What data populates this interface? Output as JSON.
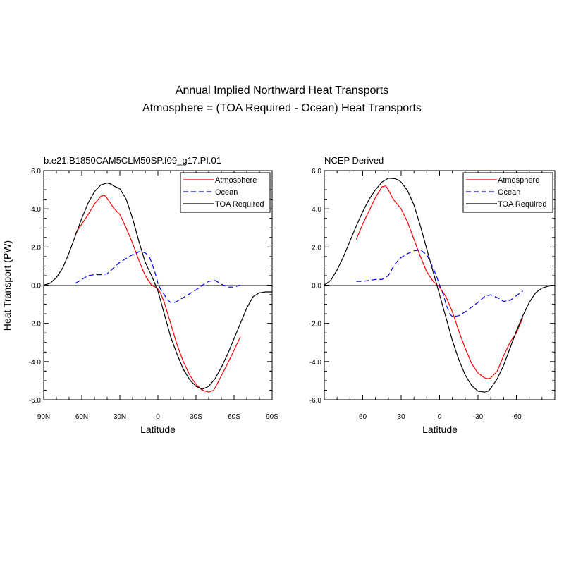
{
  "figure": {
    "title_line1": "Annual Implied Northward Heat Transports",
    "title_line2": "Atmosphere = (TOA Required - Ocean) Heat Transports"
  },
  "chart_data": [
    {
      "type": "line",
      "title": "b.e21.B1850CAM5CLM50SP.f09_g17.PI.01",
      "xlabel": "Latitude",
      "ylabel": "Heat Transport (PW)",
      "x_direction": "north-to-south",
      "xlim": [
        90,
        -90
      ],
      "ylim": [
        -6.0,
        6.0
      ],
      "xticks": [
        {
          "value": 90,
          "label": "90N"
        },
        {
          "value": 60,
          "label": "60N"
        },
        {
          "value": 30,
          "label": "30N"
        },
        {
          "value": 0,
          "label": "0"
        },
        {
          "value": -30,
          "label": "30S"
        },
        {
          "value": -60,
          "label": "60S"
        },
        {
          "value": -90,
          "label": "90S"
        }
      ],
      "yticks": [
        {
          "value": 6,
          "label": "6.0"
        },
        {
          "value": 4,
          "label": "4.0"
        },
        {
          "value": 2,
          "label": "2.0"
        },
        {
          "value": 0,
          "label": "0.0"
        },
        {
          "value": -2,
          "label": "-2.0"
        },
        {
          "value": -4,
          "label": "-4.0"
        },
        {
          "value": -6,
          "label": "-6.0"
        }
      ],
      "zero_line": true,
      "legend_position": "top-right",
      "series": [
        {
          "name": "Atmosphere",
          "color": "#ff0000",
          "dash": "solid",
          "x": [
            65,
            60,
            55,
            50,
            45,
            42,
            40,
            35,
            30,
            25,
            20,
            15,
            10,
            5,
            2,
            0,
            -2,
            -5,
            -10,
            -15,
            -20,
            -25,
            -30,
            -35,
            -40,
            -44,
            -48,
            -55,
            -65
          ],
          "y": [
            2.7,
            3.2,
            3.7,
            4.25,
            4.65,
            4.7,
            4.55,
            4.05,
            3.7,
            3.0,
            2.2,
            1.3,
            0.5,
            0.0,
            -0.1,
            -0.2,
            -0.4,
            -0.9,
            -2.0,
            -3.1,
            -4.0,
            -4.7,
            -5.2,
            -5.5,
            -5.6,
            -5.5,
            -5.0,
            -4.1,
            -2.7
          ]
        },
        {
          "name": "Ocean",
          "color": "#0000ff",
          "dash": "dashed",
          "x": [
            65,
            60,
            55,
            50,
            45,
            40,
            35,
            30,
            25,
            20,
            15,
            10,
            7,
            5,
            2,
            0,
            -2,
            -5,
            -8,
            -10,
            -13,
            -15,
            -20,
            -25,
            -30,
            -35,
            -40,
            -45,
            -50,
            -55,
            -60,
            -65
          ],
          "y": [
            0.1,
            0.3,
            0.5,
            0.55,
            0.55,
            0.6,
            0.9,
            1.2,
            1.4,
            1.6,
            1.75,
            1.7,
            1.5,
            1.2,
            0.6,
            0.1,
            -0.2,
            -0.5,
            -0.8,
            -0.9,
            -0.9,
            -0.85,
            -0.65,
            -0.45,
            -0.25,
            0.0,
            0.2,
            0.25,
            0.05,
            -0.1,
            -0.1,
            0.0
          ]
        },
        {
          "name": "TOA Required",
          "color": "#000000",
          "dash": "solid",
          "x": [
            90,
            85,
            80,
            75,
            70,
            65,
            60,
            55,
            50,
            45,
            40,
            37,
            35,
            30,
            25,
            20,
            15,
            10,
            5,
            0,
            -5,
            -10,
            -15,
            -20,
            -25,
            -30,
            -35,
            -40,
            -45,
            -50,
            -55,
            -60,
            -65,
            -70,
            -75,
            -80,
            -85,
            -90
          ],
          "y": [
            0.0,
            0.1,
            0.4,
            0.9,
            1.7,
            2.6,
            3.5,
            4.3,
            4.9,
            5.25,
            5.35,
            5.3,
            5.2,
            5.05,
            4.5,
            3.5,
            2.3,
            1.2,
            0.5,
            -0.3,
            -1.5,
            -2.7,
            -3.6,
            -4.4,
            -4.95,
            -5.3,
            -5.45,
            -5.3,
            -4.9,
            -4.3,
            -3.6,
            -2.8,
            -2.0,
            -1.2,
            -0.6,
            -0.4,
            -0.35,
            -0.35
          ]
        }
      ]
    },
    {
      "type": "line",
      "title": "NCEP Derived",
      "xlabel": "Latitude",
      "ylabel": "",
      "x_direction": "north-to-south",
      "xlim": [
        90,
        -90
      ],
      "ylim": [
        -6.0,
        6.0
      ],
      "xticks": [
        {
          "value": 60,
          "label": "60"
        },
        {
          "value": 30,
          "label": "30"
        },
        {
          "value": 0,
          "label": "0"
        },
        {
          "value": -30,
          "label": "-30"
        },
        {
          "value": -60,
          "label": "-60"
        }
      ],
      "yticks": [
        {
          "value": 6,
          "label": "6.0"
        },
        {
          "value": 4,
          "label": "4.0"
        },
        {
          "value": 2,
          "label": "2.0"
        },
        {
          "value": 0,
          "label": "0.0"
        },
        {
          "value": -2,
          "label": "-2.0"
        },
        {
          "value": -4,
          "label": "-4.0"
        },
        {
          "value": -6,
          "label": "-6.0"
        }
      ],
      "zero_line": true,
      "legend_position": "top-right",
      "series": [
        {
          "name": "Atmosphere",
          "color": "#ff0000",
          "dash": "solid",
          "x": [
            65,
            60,
            55,
            50,
            45,
            42,
            40,
            37,
            35,
            30,
            25,
            20,
            15,
            10,
            5,
            0,
            -5,
            -10,
            -15,
            -20,
            -25,
            -30,
            -35,
            -38,
            -40,
            -45,
            -50,
            -55,
            -60,
            -65
          ],
          "y": [
            2.4,
            3.2,
            3.9,
            4.6,
            5.15,
            5.2,
            5.0,
            4.6,
            4.4,
            4.0,
            3.3,
            2.4,
            1.5,
            0.7,
            0.2,
            -0.1,
            -0.6,
            -1.4,
            -2.4,
            -3.3,
            -4.1,
            -4.6,
            -4.85,
            -4.9,
            -4.85,
            -4.5,
            -3.7,
            -3.0,
            -2.5,
            -1.7
          ]
        },
        {
          "name": "Ocean",
          "color": "#0000ff",
          "dash": "dashed",
          "x": [
            65,
            60,
            55,
            50,
            45,
            40,
            35,
            30,
            25,
            20,
            15,
            10,
            5,
            2,
            0,
            -3,
            -5,
            -8,
            -10,
            -15,
            -20,
            -25,
            -30,
            -35,
            -40,
            -45,
            -50,
            -55,
            -60,
            -65
          ],
          "y": [
            0.2,
            0.2,
            0.25,
            0.3,
            0.3,
            0.5,
            1.1,
            1.45,
            1.65,
            1.8,
            1.85,
            1.6,
            0.9,
            0.4,
            0.0,
            -0.5,
            -1.0,
            -1.5,
            -1.65,
            -1.6,
            -1.4,
            -1.15,
            -0.9,
            -0.6,
            -0.5,
            -0.65,
            -0.85,
            -0.8,
            -0.55,
            -0.3
          ]
        },
        {
          "name": "TOA Required",
          "color": "#000000",
          "dash": "solid",
          "x": [
            90,
            85,
            80,
            75,
            70,
            65,
            60,
            55,
            50,
            45,
            40,
            35,
            32,
            30,
            25,
            20,
            15,
            10,
            5,
            0,
            -5,
            -10,
            -15,
            -20,
            -25,
            -30,
            -35,
            -38,
            -40,
            -45,
            -50,
            -55,
            -60,
            -65,
            -70,
            -75,
            -80,
            -85,
            -90
          ],
          "y": [
            0.0,
            0.25,
            0.8,
            1.5,
            2.3,
            3.1,
            3.85,
            4.5,
            5.0,
            5.4,
            5.6,
            5.58,
            5.5,
            5.4,
            4.95,
            4.2,
            3.1,
            1.9,
            0.7,
            -0.5,
            -1.7,
            -2.9,
            -3.9,
            -4.7,
            -5.25,
            -5.55,
            -5.6,
            -5.55,
            -5.4,
            -4.9,
            -4.2,
            -3.3,
            -2.4,
            -1.6,
            -0.9,
            -0.4,
            -0.15,
            -0.05,
            0.0
          ]
        }
      ]
    }
  ]
}
